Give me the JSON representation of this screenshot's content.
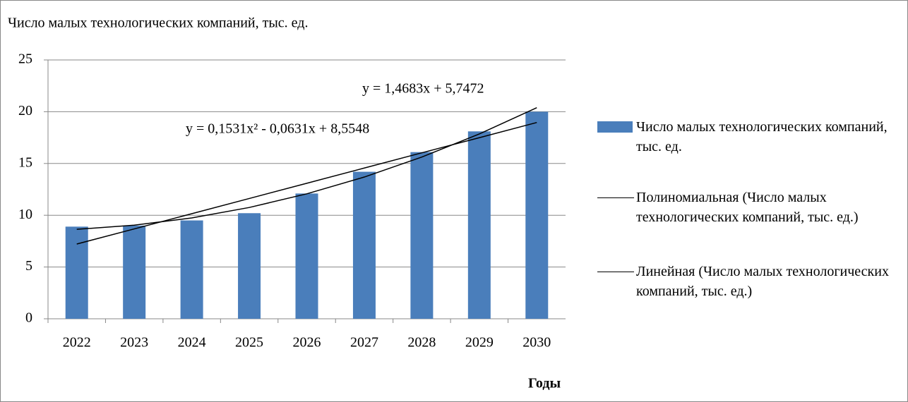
{
  "chart_data": {
    "type": "bar",
    "title": "Число малых технологических  компаний, тыс. ед.",
    "x_label": "Годы",
    "categories": [
      "2022",
      "2023",
      "2024",
      "2025",
      "2026",
      "2027",
      "2028",
      "2029",
      "2030"
    ],
    "series": [
      {
        "name": "Число малых технологических  компаний, тыс. ед.",
        "type": "bar",
        "color": "#4a7ebb",
        "values": [
          8.9,
          9.0,
          9.5,
          10.2,
          12.1,
          14.2,
          16.1,
          18.1,
          20.0
        ]
      },
      {
        "name": "Полиномиальная (Число малых технологических  компаний, тыс. ед.)",
        "type": "line",
        "color": "#000000",
        "values": [
          8.64,
          9.04,
          9.74,
          10.75,
          12.07,
          13.69,
          15.62,
          17.85,
          20.39
        ]
      },
      {
        "name": "Линейная (Число малых технологических  компаний, тыс. ед.)",
        "type": "line",
        "color": "#000000",
        "values": [
          7.22,
          8.68,
          10.15,
          11.62,
          13.09,
          14.56,
          16.03,
          17.49,
          18.96
        ]
      }
    ],
    "annotations": [
      "y = 0,1531x² - 0,0631x + 8,5548",
      "y = 1,4683x + 5,7472"
    ],
    "ylim": [
      0,
      25
    ],
    "yticks": [
      0,
      5,
      10,
      15,
      20,
      25
    ],
    "grid": true,
    "legend": "right"
  }
}
